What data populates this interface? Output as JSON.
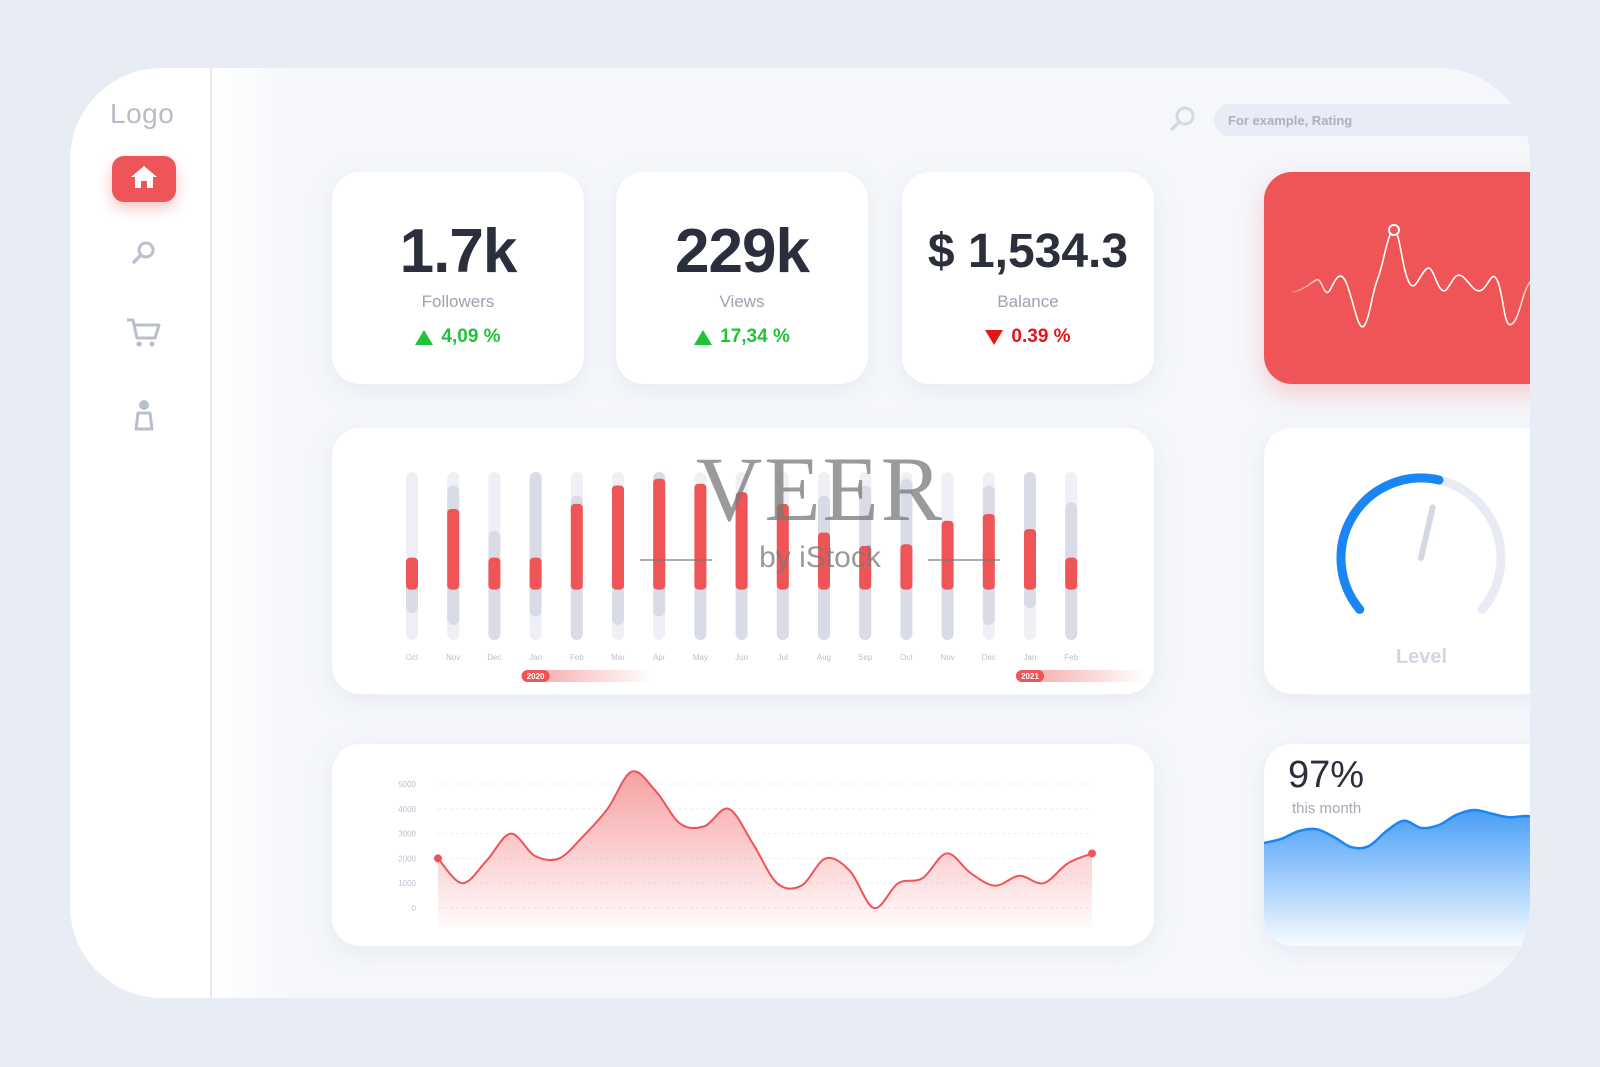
{
  "app": {
    "logo": "Logo"
  },
  "sidebar": {
    "items": [
      {
        "icon": "home-icon",
        "active": true
      },
      {
        "icon": "search-icon",
        "active": false
      },
      {
        "icon": "cart-icon",
        "active": false
      },
      {
        "icon": "user-icon",
        "active": false
      }
    ]
  },
  "search": {
    "placeholder": "For example, Rating"
  },
  "stats": [
    {
      "value": "1.7k",
      "label": "Followers",
      "change": "4,09 %",
      "direction": "up"
    },
    {
      "value": "229k",
      "label": "Views",
      "change": "17,34 %",
      "direction": "up"
    },
    {
      "value": "$ 1,534.3",
      "label": "Balance",
      "change": "0.39 %",
      "direction": "down"
    }
  ],
  "colors": {
    "accent": "#ef5456",
    "up": "#1ec337",
    "down": "#e5141a",
    "blue": "#1a86f5"
  },
  "bar_chart": {
    "months": [
      "Oct",
      "Nov",
      "Dec",
      "Jan",
      "Feb",
      "Mar",
      "Apr",
      "May",
      "Jun",
      "Jul",
      "Aug",
      "Sep",
      "Oct",
      "Nov",
      "Dec",
      "Jan",
      "Feb"
    ],
    "bars": [
      {
        "bg_lo": 0.16,
        "bg_hi": 0.49,
        "red_lo": 0.3,
        "red_hi": 0.49
      },
      {
        "bg_lo": 0.09,
        "bg_hi": 0.92,
        "red_lo": 0.3,
        "red_hi": 0.78
      },
      {
        "bg_lo": 0.0,
        "bg_hi": 0.65,
        "red_lo": 0.3,
        "red_hi": 0.49
      },
      {
        "bg_lo": 0.14,
        "bg_hi": 1.0,
        "red_lo": 0.3,
        "red_hi": 0.49
      },
      {
        "bg_lo": 0.0,
        "bg_hi": 0.86,
        "red_lo": 0.3,
        "red_hi": 0.81
      },
      {
        "bg_lo": 0.09,
        "bg_hi": 0.92,
        "red_lo": 0.3,
        "red_hi": 0.92
      },
      {
        "bg_lo": 0.14,
        "bg_hi": 1.0,
        "red_lo": 0.3,
        "red_hi": 0.96
      },
      {
        "bg_lo": 0.0,
        "bg_hi": 0.73,
        "red_lo": 0.3,
        "red_hi": 0.93
      },
      {
        "bg_lo": 0.0,
        "bg_hi": 0.75,
        "red_lo": 0.3,
        "red_hi": 0.88
      },
      {
        "bg_lo": 0.0,
        "bg_hi": 0.76,
        "red_lo": 0.3,
        "red_hi": 0.81
      },
      {
        "bg_lo": 0.0,
        "bg_hi": 0.86,
        "red_lo": 0.3,
        "red_hi": 0.64
      },
      {
        "bg_lo": 0.0,
        "bg_hi": 0.92,
        "red_lo": 0.3,
        "red_hi": 0.56
      },
      {
        "bg_lo": 0.0,
        "bg_hi": 0.96,
        "red_lo": 0.3,
        "red_hi": 0.57
      },
      {
        "bg_lo": 0.0,
        "bg_hi": 0.68,
        "red_lo": 0.3,
        "red_hi": 0.71
      },
      {
        "bg_lo": 0.09,
        "bg_hi": 0.92,
        "red_lo": 0.3,
        "red_hi": 0.75
      },
      {
        "bg_lo": 0.19,
        "bg_hi": 1.0,
        "red_lo": 0.3,
        "red_hi": 0.66
      },
      {
        "bg_lo": 0.0,
        "bg_hi": 0.82,
        "red_lo": 0.3,
        "red_hi": 0.49
      }
    ],
    "year_badges": [
      {
        "label": "2020",
        "month_index": 3
      },
      {
        "label": "2021",
        "month_index": 15
      }
    ]
  },
  "gauge": {
    "label": "Level",
    "fraction": 0.55
  },
  "chart_data": {
    "type": "area",
    "yticks": [
      "5000",
      "4000",
      "3000",
      "2000",
      "1000",
      "0"
    ],
    "ylim": [
      0,
      5000
    ],
    "x": [
      0,
      1,
      2,
      3,
      4,
      5,
      6,
      7,
      8,
      9,
      10,
      11,
      12,
      13,
      14,
      15,
      16,
      17,
      18,
      19,
      20,
      21,
      22,
      23,
      24,
      25,
      26,
      27
    ],
    "values": [
      2000,
      1000,
      1900,
      3000,
      2100,
      2000,
      2900,
      4000,
      5500,
      4700,
      3400,
      3300,
      4000,
      2600,
      1000,
      900,
      2000,
      1500,
      0,
      1000,
      1200,
      2200,
      1400,
      900,
      1300,
      1000,
      1800,
      2200
    ]
  },
  "monthly": {
    "value": "97%",
    "subtitle": "this month",
    "series": [
      0.35,
      0.42,
      0.55,
      0.58,
      0.45,
      0.28,
      0.3,
      0.55,
      0.72,
      0.6,
      0.65,
      0.82,
      0.9,
      0.84,
      0.78,
      0.8,
      0.76,
      0.8,
      0.84
    ]
  },
  "watermark": {
    "main": "VEER",
    "sub": "by iStock"
  }
}
